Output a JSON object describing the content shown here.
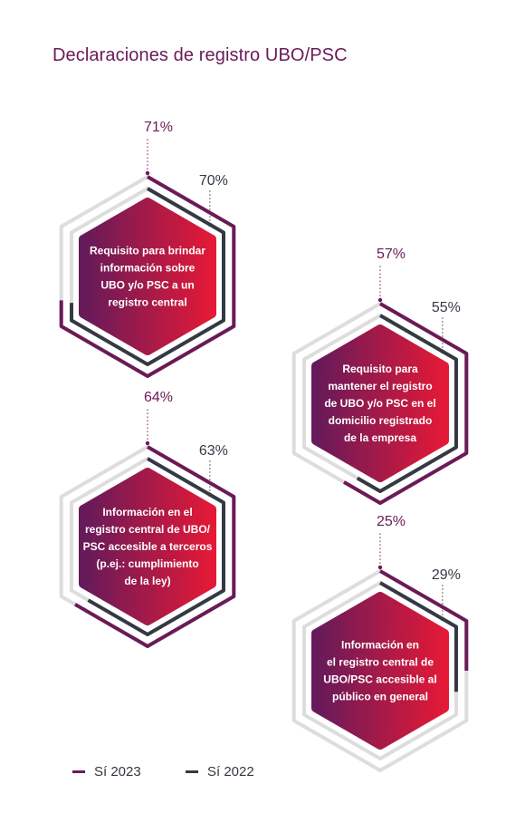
{
  "title": "Declaraciones de registro UBO/PSC",
  "colors": {
    "series_2023": "#6b1a57",
    "series_2022": "#343a44",
    "track": "#dddddd",
    "gradient_start": "#651a5a",
    "gradient_end": "#e41937"
  },
  "legend": [
    {
      "label": "Sí 2023",
      "color": "#6b1a57"
    },
    {
      "label": "Sí 2022",
      "color": "#343a44"
    }
  ],
  "chart_data": {
    "type": "hexagon-progress",
    "title": "Declaraciones de registro UBO/PSC",
    "categories": [
      [
        "Requisito para brindar",
        "información sobre",
        "UBO y/o PSC a un",
        "registro central"
      ],
      [
        "Requisito para",
        "mantener el registro",
        "de UBO y/o PSC en el",
        "domicilio registrado",
        "de la empresa"
      ],
      [
        "Información en el",
        "registro central de UBO/",
        "PSC accesible a terceros",
        "(p.ej.: cumplimiento",
        "de la ley)"
      ],
      [
        "Información en",
        "el registro central de",
        "UBO/PSC accesible al",
        "público en general"
      ]
    ],
    "series": [
      {
        "name": "Sí 2023",
        "values": [
          71,
          57,
          64,
          25
        ],
        "labels": [
          "71%",
          "57%",
          "64%",
          "25%"
        ]
      },
      {
        "name": "Sí 2022",
        "values": [
          70,
          55,
          63,
          29
        ],
        "labels": [
          "70%",
          "55%",
          "63%",
          "29%"
        ]
      }
    ],
    "unit": "%",
    "legend_position": "bottom-left"
  }
}
